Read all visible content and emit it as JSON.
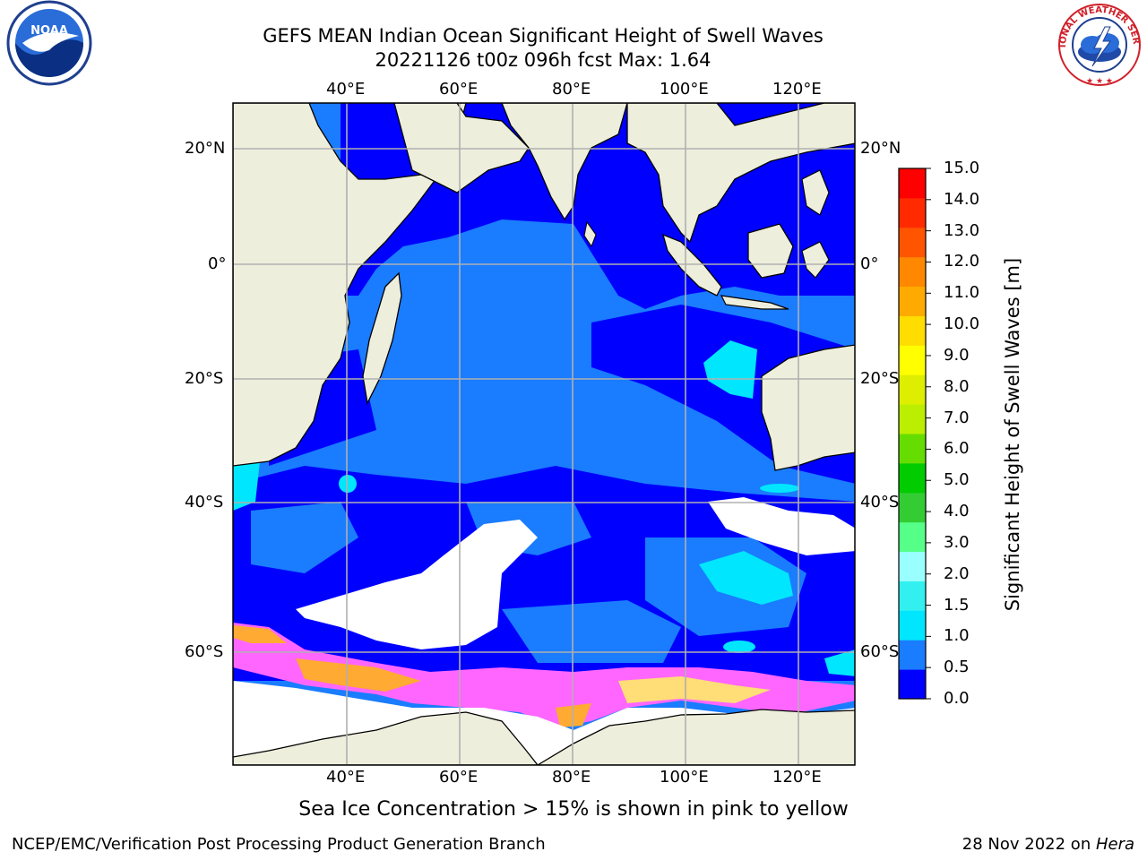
{
  "title": {
    "line1": "GEFS MEAN Indian Ocean Significant Height of Swell Waves",
    "line2": "20221126 t00z 096h fcst   Max: 1.64"
  },
  "map": {
    "lon_labels_top": [
      "40°E",
      "60°E",
      "80°E",
      "100°E",
      "120°E"
    ],
    "lon_labels_bottom": [
      "40°E",
      "60°E",
      "80°E",
      "100°E",
      "120°E"
    ],
    "lat_labels_left": [
      "20°N",
      "0°",
      "20°S",
      "40°S",
      "60°S"
    ],
    "lat_labels_right": [
      "20°N",
      "0°",
      "20°S",
      "40°S",
      "60°S"
    ],
    "extent": {
      "lon_min": 20,
      "lon_max": 130,
      "lat_min": -74,
      "lat_max": 28
    }
  },
  "colorbar": {
    "title": "Significant Height of Swell Waves [m]",
    "tick_labels": [
      "15.0",
      "14.0",
      "13.0",
      "12.0",
      "11.0",
      "10.0",
      "9.0",
      "8.0",
      "7.0",
      "6.0",
      "5.0",
      "4.0",
      "3.0",
      "2.0",
      "1.5",
      "1.0",
      "0.5",
      "0.0"
    ],
    "colors_bottom_to_top": [
      "#0000ff",
      "#1a7cff",
      "#00e6ff",
      "#33f0f0",
      "#99ffff",
      "#55ff88",
      "#33cc33",
      "#00cc00",
      "#66dd00",
      "#bbee00",
      "#ddee00",
      "#ffff00",
      "#ffdd00",
      "#ffaa00",
      "#ff8800",
      "#ff5500",
      "#ff2a00",
      "#ff0000"
    ]
  },
  "caption": "Sea Ice Concentration > 15% is shown in pink to yellow",
  "footer": {
    "left": "NCEP/EMC/Verification Post Processing Product Generation Branch",
    "right_prefix": "28 Nov 2022 on ",
    "right_host": "Hera"
  },
  "logos": {
    "noaa": "NOAA",
    "nws": "NATIONAL WEATHER SERVICE"
  },
  "colors": {
    "land": "#eeeedd",
    "ocean_deep": "#0000ff",
    "ocean_mid": "#1a7cff",
    "ocean_light": "#00e6ff",
    "ice_pink": "#ff66ff",
    "ice_orange": "#ffaa33",
    "grid": "#b0b0b0"
  }
}
